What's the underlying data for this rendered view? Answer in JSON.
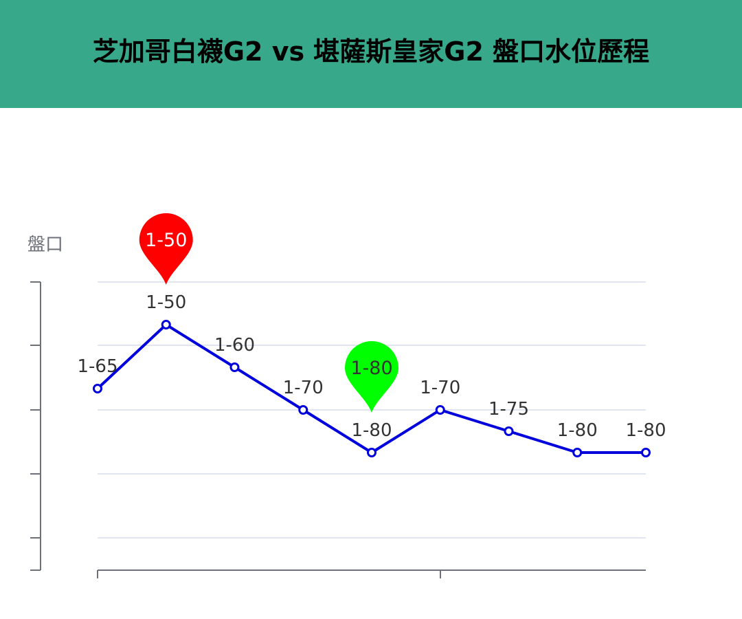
{
  "header": {
    "title": "芝加哥白襪G2 vs 堪薩斯皇家G2 盤口水位歷程"
  },
  "colors": {
    "header_bg": "#38a88a",
    "line": "#0000dd",
    "max_pin": "#ff0000",
    "min_pin": "#00ff00",
    "axis": "#6e7079",
    "grid": "#e0e6f1"
  },
  "chart_data": {
    "type": "line",
    "title": "芝加哥白襪G2 vs 堪薩斯皇家G2 盤口水位歷程",
    "ylabel": "盤口",
    "xlabel": "",
    "grid": true,
    "series": [
      {
        "values": [
          -65,
          -50,
          -60,
          -70,
          -80,
          -70,
          -75,
          -80,
          -80
        ],
        "labels": [
          "1-65",
          "1-50",
          "1-60",
          "1-70",
          "1-80",
          "1-70",
          "1-75",
          "1-80",
          "1-80"
        ]
      }
    ],
    "markers": [
      {
        "type": "max",
        "index": 1,
        "label": "1-50",
        "color": "#ff0000"
      },
      {
        "type": "min",
        "index": 4,
        "label": "1-80",
        "color": "#00ff00"
      }
    ],
    "ylim": [
      -100,
      -40
    ]
  }
}
